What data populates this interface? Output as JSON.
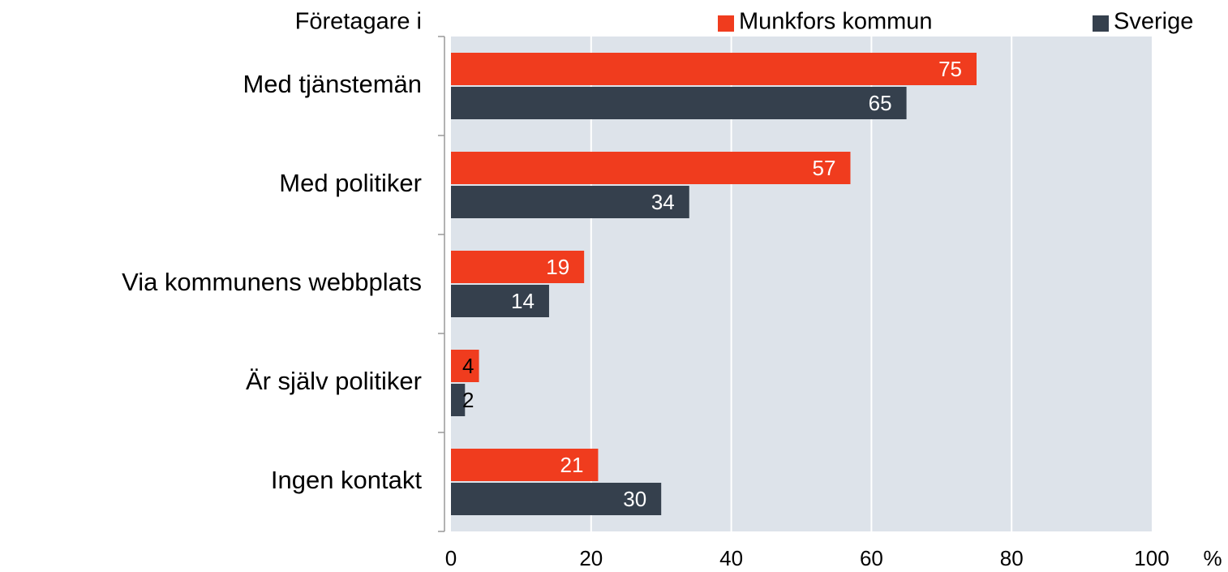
{
  "chart_data": {
    "type": "barh",
    "legend_title": "Företagare i",
    "x_label": "%",
    "categories": [
      "Med tjänstemän",
      "Med politiker",
      "Via kommunens webbplats",
      "Är själv politiker",
      "Ingen kontakt"
    ],
    "series": [
      {
        "name": "Munkfors kommun",
        "color": "#f03c1e",
        "values": [
          75,
          57,
          19,
          4,
          21
        ]
      },
      {
        "name": "Sverige",
        "color": "#35404d",
        "values": [
          65,
          34,
          14,
          2,
          30
        ]
      }
    ],
    "xlim": [
      0,
      100
    ],
    "xticks": [
      0,
      20,
      40,
      60,
      80,
      100
    ],
    "grid": true,
    "background": "#dde3ea"
  }
}
